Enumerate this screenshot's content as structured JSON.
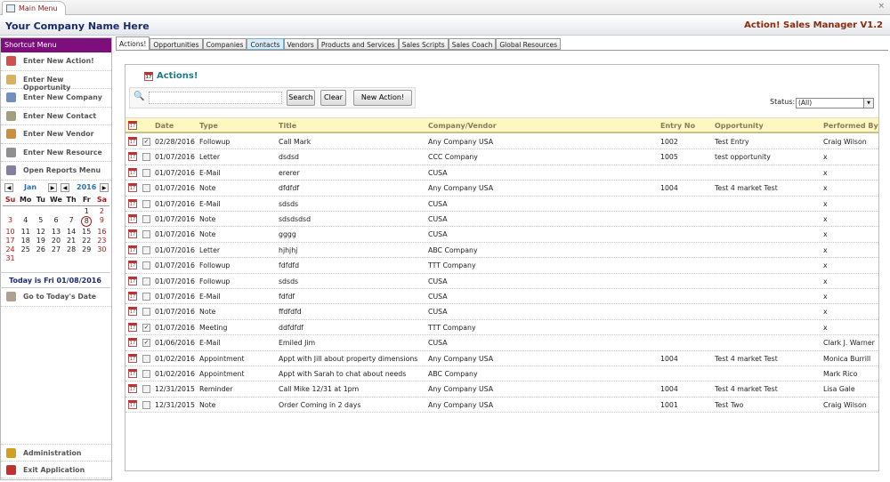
{
  "window": {
    "tab": "Main Menu",
    "close": "×"
  },
  "header": {
    "company": "Your Company Name Here",
    "app": "Action! Sales Manager V1.2"
  },
  "sidebar": {
    "title": "Shortcut Menu",
    "items": [
      {
        "label": "Enter New Action!",
        "icon": "calendar-icon",
        "color": "#d05050"
      },
      {
        "label": "Enter New Opportunity",
        "icon": "clipboard-icon",
        "color": "#d8b060"
      },
      {
        "label": "Enter New Company",
        "icon": "company-card-icon",
        "color": "#7090c0"
      },
      {
        "label": "Enter New Contact",
        "icon": "contact-icon",
        "color": "#a0a080"
      },
      {
        "label": "Enter New Vendor",
        "icon": "vendor-icon",
        "color": "#c89040"
      },
      {
        "label": "Enter New Resource",
        "icon": "resource-icon",
        "color": "#909090"
      },
      {
        "label": "Open Reports Menu",
        "icon": "printer-icon",
        "color": "#8080a0"
      }
    ],
    "bottom": [
      {
        "label": "Administration",
        "icon": "key-icon",
        "color": "#d0a020"
      },
      {
        "label": "Exit Application",
        "icon": "exit-icon",
        "color": "#c03030"
      }
    ]
  },
  "calendar": {
    "month": "Jan",
    "year": "2016",
    "days": [
      "Su",
      "Mo",
      "Tu",
      "We",
      "Th",
      "Fr",
      "Sa"
    ],
    "first_weekday": 5,
    "num_days": 31,
    "selected": 8,
    "today_text": "Today is Fri 01/08/2016",
    "goto_label": "Go to Today's Date"
  },
  "tabs": [
    {
      "label": "Actions!",
      "active": true
    },
    {
      "label": "Opportunities"
    },
    {
      "label": "Companies"
    },
    {
      "label": "Contacts",
      "hl": true
    },
    {
      "label": "Vendors"
    },
    {
      "label": "Products and Services"
    },
    {
      "label": "Sales Scripts"
    },
    {
      "label": "Sales Coach"
    },
    {
      "label": "Global Resources"
    }
  ],
  "main": {
    "title": "Actions!",
    "search_value": "",
    "search_label": "Search",
    "clear_label": "Clear",
    "new_label": "New Action!",
    "status_label": "Status:",
    "status_value": "(All)"
  },
  "table": {
    "columns": [
      "Date",
      "Type",
      "Title",
      "Company/Vendor",
      "Entry No",
      "Opportunity",
      "Performed By"
    ],
    "rows": [
      {
        "done": true,
        "date": "02/28/2016",
        "type": "Followup",
        "title": "Call Mark",
        "company": "Any Company USA",
        "entry": "1002",
        "opp": "Test Entry",
        "by": "Craig Wilson"
      },
      {
        "done": false,
        "date": "01/07/2016",
        "type": "Letter",
        "title": "dsdsd",
        "company": "CCC Company",
        "entry": "1005",
        "opp": "test opportunity",
        "by": "x"
      },
      {
        "done": false,
        "date": "01/07/2016",
        "type": "E-Mail",
        "title": "ererer",
        "company": "CUSA",
        "entry": "",
        "opp": "",
        "by": "x"
      },
      {
        "done": false,
        "date": "01/07/2016",
        "type": "Note",
        "title": "dfdfdf",
        "company": "Any Company USA",
        "entry": "1004",
        "opp": "Test 4 market Test",
        "by": "x"
      },
      {
        "done": false,
        "date": "01/07/2016",
        "type": "E-Mail",
        "title": "sdsds",
        "company": "CUSA",
        "entry": "",
        "opp": "",
        "by": "x"
      },
      {
        "done": false,
        "date": "01/07/2016",
        "type": "Note",
        "title": "sdsdsdsd",
        "company": "CUSA",
        "entry": "",
        "opp": "",
        "by": "x"
      },
      {
        "done": false,
        "date": "01/07/2016",
        "type": "Note",
        "title": "gggg",
        "company": "CUSA",
        "entry": "",
        "opp": "",
        "by": "x"
      },
      {
        "done": false,
        "date": "01/07/2016",
        "type": "Letter",
        "title": "hjhjhj",
        "company": "ABC Company",
        "entry": "",
        "opp": "",
        "by": "x"
      },
      {
        "done": false,
        "date": "01/07/2016",
        "type": "Followup",
        "title": "fdfdfd",
        "company": "TTT Company",
        "entry": "",
        "opp": "",
        "by": "x"
      },
      {
        "done": false,
        "date": "01/07/2016",
        "type": "Followup",
        "title": "sdsds",
        "company": "CUSA",
        "entry": "",
        "opp": "",
        "by": "x"
      },
      {
        "done": false,
        "date": "01/07/2016",
        "type": "E-Mail",
        "title": "fdfdf",
        "company": "CUSA",
        "entry": "",
        "opp": "",
        "by": "x"
      },
      {
        "done": false,
        "date": "01/07/2016",
        "type": "Note",
        "title": "ffdfdfd",
        "company": "CUSA",
        "entry": "",
        "opp": "",
        "by": "x"
      },
      {
        "done": true,
        "date": "01/07/2016",
        "type": "Meeting",
        "title": "ddfdfdf",
        "company": "TTT Company",
        "entry": "",
        "opp": "",
        "by": "x"
      },
      {
        "done": true,
        "date": "01/06/2016",
        "type": "E-Mail",
        "title": "Emiled Jim",
        "company": "CUSA",
        "entry": "",
        "opp": "",
        "by": "Clark J. Warner"
      },
      {
        "done": false,
        "date": "01/02/2016",
        "type": "Appointment",
        "title": "Appt with Jill about property dimensions",
        "company": "Any Company USA",
        "entry": "1004",
        "opp": "Test 4 market Test",
        "by": "Monica Burrill"
      },
      {
        "done": false,
        "date": "01/02/2016",
        "type": "Appointment",
        "title": "Appt with Sarah to chat about needs",
        "company": "ABC Company",
        "entry": "",
        "opp": "",
        "by": "Mark Rico"
      },
      {
        "done": false,
        "date": "12/31/2015",
        "type": "Reminder",
        "title": "Call Mike 12/31 at 1pm",
        "company": "Any Company USA",
        "entry": "1004",
        "opp": "Test 4 market Test",
        "by": "Lisa Gale"
      },
      {
        "done": false,
        "date": "12/31/2015",
        "type": "Note",
        "title": "Order Coming in 2 days",
        "company": "Any Company USA",
        "entry": "1001",
        "opp": "Test Two",
        "by": "Craig Wilson"
      }
    ]
  }
}
